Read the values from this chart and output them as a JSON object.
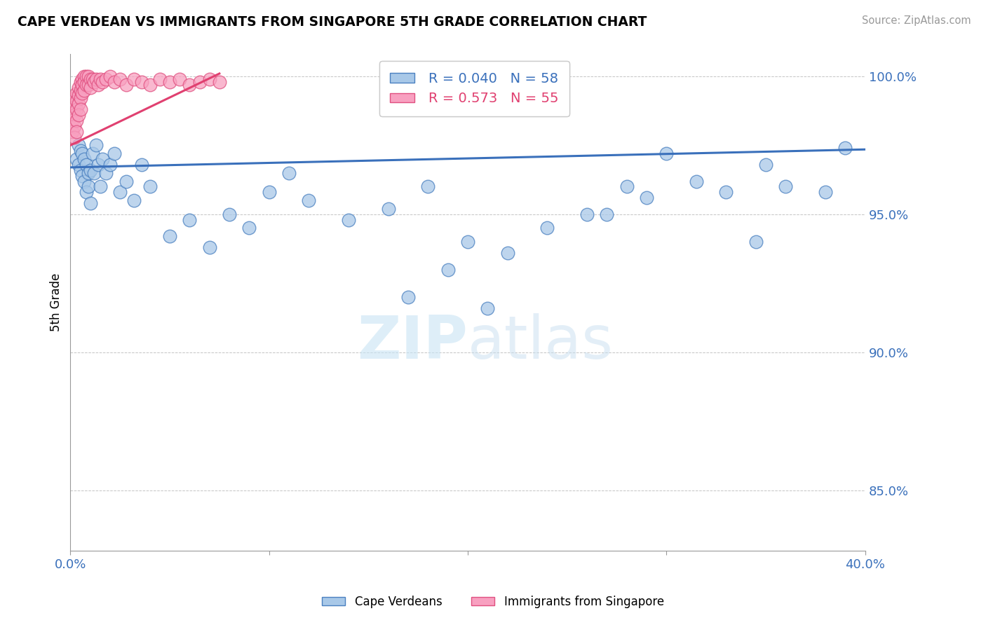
{
  "title": "CAPE VERDEAN VS IMMIGRANTS FROM SINGAPORE 5TH GRADE CORRELATION CHART",
  "source": "Source: ZipAtlas.com",
  "ylabel": "5th Grade",
  "xlim": [
    0.0,
    0.4
  ],
  "ylim": [
    0.828,
    1.008
  ],
  "xticks": [
    0.0,
    0.1,
    0.2,
    0.3,
    0.4
  ],
  "xtick_labels": [
    "0.0%",
    "",
    "",
    "",
    "40.0%"
  ],
  "yticks": [
    0.85,
    0.9,
    0.95,
    1.0
  ],
  "ytick_labels": [
    "85.0%",
    "90.0%",
    "95.0%",
    "100.0%"
  ],
  "blue_R": 0.04,
  "blue_N": 58,
  "pink_R": 0.573,
  "pink_N": 55,
  "blue_color": "#a8c8e8",
  "blue_edge": "#4a80c0",
  "pink_color": "#f8a0c0",
  "pink_edge": "#e05080",
  "blue_line_color": "#3a70bb",
  "pink_line_color": "#e04070",
  "legend_blue_label": "Cape Verdeans",
  "legend_pink_label": "Immigrants from Singapore",
  "blue_x": [
    0.003,
    0.004,
    0.004,
    0.005,
    0.005,
    0.006,
    0.006,
    0.007,
    0.007,
    0.008,
    0.008,
    0.009,
    0.009,
    0.01,
    0.01,
    0.011,
    0.012,
    0.013,
    0.014,
    0.015,
    0.016,
    0.018,
    0.02,
    0.022,
    0.025,
    0.028,
    0.032,
    0.036,
    0.04,
    0.05,
    0.06,
    0.07,
    0.08,
    0.09,
    0.1,
    0.11,
    0.12,
    0.14,
    0.16,
    0.18,
    0.2,
    0.22,
    0.24,
    0.26,
    0.28,
    0.17,
    0.19,
    0.21,
    0.35,
    0.36,
    0.38,
    0.39,
    0.3,
    0.315,
    0.33,
    0.345,
    0.29,
    0.27
  ],
  "blue_y": [
    0.97,
    0.975,
    0.968,
    0.973,
    0.966,
    0.972,
    0.964,
    0.97,
    0.962,
    0.968,
    0.958,
    0.965,
    0.96,
    0.966,
    0.954,
    0.972,
    0.965,
    0.975,
    0.968,
    0.96,
    0.97,
    0.965,
    0.968,
    0.972,
    0.958,
    0.962,
    0.955,
    0.968,
    0.96,
    0.942,
    0.948,
    0.938,
    0.95,
    0.945,
    0.958,
    0.965,
    0.955,
    0.948,
    0.952,
    0.96,
    0.94,
    0.936,
    0.945,
    0.95,
    0.96,
    0.92,
    0.93,
    0.916,
    0.968,
    0.96,
    0.958,
    0.974,
    0.972,
    0.962,
    0.958,
    0.94,
    0.956,
    0.95
  ],
  "pink_x": [
    0.001,
    0.001,
    0.001,
    0.001,
    0.002,
    0.002,
    0.002,
    0.002,
    0.002,
    0.003,
    0.003,
    0.003,
    0.003,
    0.003,
    0.004,
    0.004,
    0.004,
    0.004,
    0.005,
    0.005,
    0.005,
    0.005,
    0.006,
    0.006,
    0.006,
    0.007,
    0.007,
    0.007,
    0.008,
    0.008,
    0.009,
    0.009,
    0.01,
    0.01,
    0.011,
    0.012,
    0.013,
    0.014,
    0.015,
    0.016,
    0.018,
    0.02,
    0.022,
    0.025,
    0.028,
    0.032,
    0.036,
    0.04,
    0.045,
    0.05,
    0.055,
    0.06,
    0.065,
    0.07,
    0.075
  ],
  "pink_y": [
    0.99,
    0.987,
    0.984,
    0.98,
    0.992,
    0.989,
    0.986,
    0.982,
    0.978,
    0.994,
    0.991,
    0.988,
    0.984,
    0.98,
    0.996,
    0.993,
    0.99,
    0.986,
    0.998,
    0.995,
    0.992,
    0.988,
    0.999,
    0.997,
    0.994,
    1.0,
    0.998,
    0.995,
    1.0,
    0.997,
    1.0,
    0.997,
    0.999,
    0.996,
    0.999,
    0.998,
    0.999,
    0.997,
    0.999,
    0.998,
    0.999,
    1.0,
    0.998,
    0.999,
    0.997,
    0.999,
    0.998,
    0.997,
    0.999,
    0.998,
    0.999,
    0.997,
    0.998,
    0.999,
    0.998
  ],
  "blue_line_x0": 0.0,
  "blue_line_x1": 0.4,
  "blue_line_y0": 0.967,
  "blue_line_y1": 0.9735,
  "pink_line_x0": 0.0,
  "pink_line_x1": 0.075,
  "pink_line_y0": 0.975,
  "pink_line_y1": 1.001
}
